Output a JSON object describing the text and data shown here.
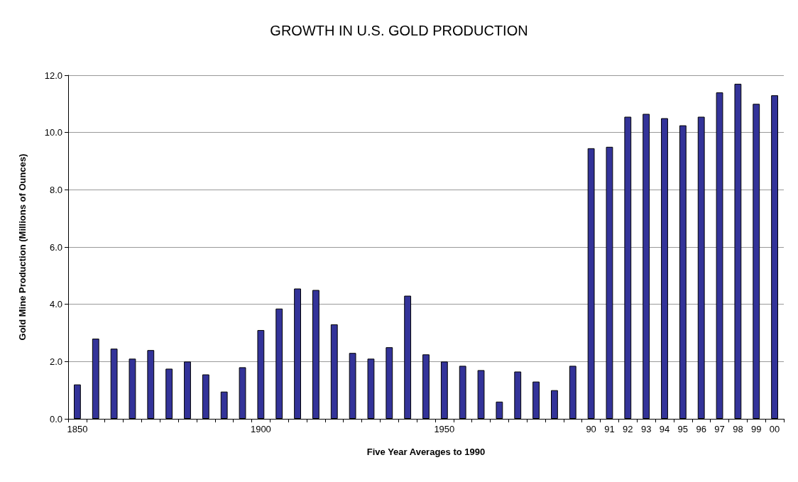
{
  "chart_data": {
    "type": "bar",
    "title": "GROWTH IN U.S. GOLD PRODUCTION",
    "xlabel": "Five Year Averages to 1990",
    "ylabel": "Gold Mine Production (Millions of Ounces)",
    "categories": [
      "1850",
      null,
      null,
      null,
      null,
      null,
      null,
      null,
      null,
      null,
      "1900",
      null,
      null,
      null,
      null,
      null,
      null,
      null,
      null,
      null,
      "1950",
      null,
      null,
      null,
      null,
      null,
      null,
      null,
      "90",
      "91",
      "92",
      "93",
      "94",
      "95",
      "96",
      "97",
      "98",
      "99",
      "00"
    ],
    "values": [
      1.2,
      2.8,
      2.45,
      2.1,
      2.4,
      1.75,
      2.0,
      1.55,
      0.95,
      1.8,
      3.1,
      3.85,
      4.55,
      4.5,
      3.3,
      2.3,
      2.1,
      2.5,
      4.3,
      2.25,
      2.0,
      1.85,
      1.7,
      0.6,
      1.65,
      1.3,
      1.0,
      1.85,
      9.45,
      9.5,
      10.55,
      10.65,
      10.5,
      10.25,
      10.55,
      11.4,
      11.7,
      11.0,
      11.3
    ],
    "color": "#333399",
    "ylim": [
      0,
      12
    ],
    "yticks": [
      {
        "value": 0,
        "label": "0.0"
      },
      {
        "value": 2,
        "label": "2.0"
      },
      {
        "value": 4,
        "label": "4.0"
      },
      {
        "value": 6,
        "label": "6.0"
      },
      {
        "value": 8,
        "label": "8.0"
      },
      {
        "value": 10,
        "label": "10.0"
      },
      {
        "value": 12,
        "label": "12.0"
      }
    ],
    "grid": "y"
  }
}
